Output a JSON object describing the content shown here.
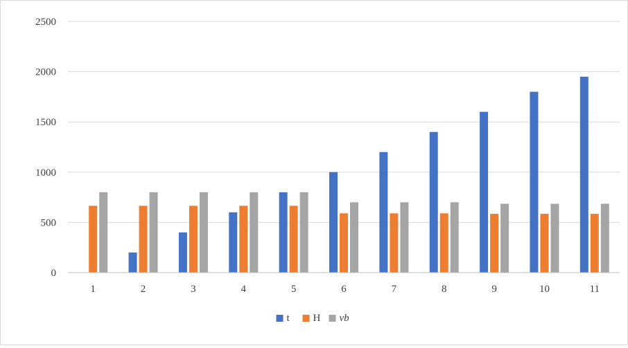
{
  "chart_data": {
    "type": "bar",
    "categories": [
      "1",
      "2",
      "3",
      "4",
      "5",
      "6",
      "7",
      "8",
      "9",
      "10",
      "11"
    ],
    "series": [
      {
        "name": "t",
        "color": "#4472c4",
        "values": [
          0,
          200,
          400,
          600,
          800,
          1000,
          1200,
          1400,
          1600,
          1800,
          1950
        ]
      },
      {
        "name": "H",
        "color": "#ed7d31",
        "values": [
          665,
          665,
          665,
          665,
          665,
          590,
          590,
          590,
          585,
          585,
          585
        ]
      },
      {
        "name": "vb",
        "color": "#a5a5a5",
        "values": [
          800,
          800,
          800,
          800,
          800,
          700,
          700,
          700,
          685,
          685,
          685
        ]
      }
    ],
    "yticks": [
      0,
      500,
      1000,
      1500,
      2000,
      2500
    ],
    "ylim": [
      0,
      2500
    ],
    "grid": true,
    "legend_position": "bottom",
    "title": "",
    "xlabel": "",
    "ylabel": ""
  }
}
